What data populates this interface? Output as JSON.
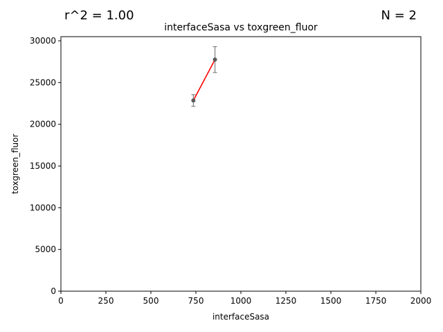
{
  "annotations": {
    "r2": "r^2 = 1.00",
    "n": "N = 2"
  },
  "chart_data": {
    "type": "scatter",
    "title": "interfaceSasa vs toxgreen_fluor",
    "xlabel": "interfaceSasa",
    "ylabel": "toxgreen_fluor",
    "xlim": [
      0,
      2000
    ],
    "ylim": [
      0,
      30500
    ],
    "xticks": [
      0,
      250,
      500,
      750,
      1000,
      1250,
      1500,
      1750,
      2000
    ],
    "yticks": [
      0,
      5000,
      10000,
      15000,
      20000,
      25000,
      30000
    ],
    "grid": false,
    "legend": "none",
    "points": [
      {
        "x": 736,
        "y": 22850,
        "yerr": 700
      },
      {
        "x": 856,
        "y": 27750,
        "yerr": 1550
      }
    ],
    "fit_line": {
      "x": [
        736,
        856
      ],
      "y": [
        22850,
        27750
      ],
      "color": "#ff0000"
    },
    "marker_color": "#5a5a5a",
    "errorbar_color": "#7f7f7f"
  }
}
